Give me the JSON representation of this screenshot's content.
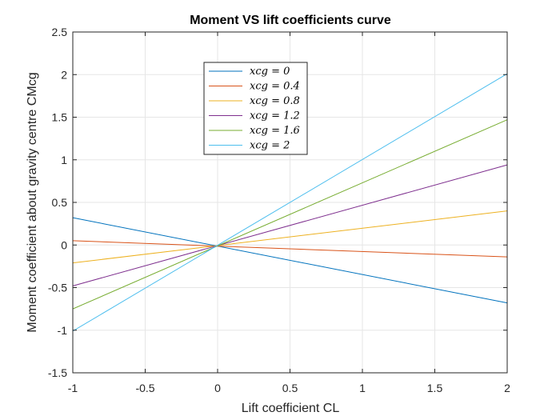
{
  "chart_data": {
    "type": "line",
    "title": "Moment VS lift coefficients curve",
    "xlabel": "Lift coefficient CL",
    "ylabel": "Moment coefficient about gravity centre CMcg",
    "xlim": [
      -1,
      2
    ],
    "ylim": [
      -1.5,
      2.5
    ],
    "xticks": [
      -1,
      -0.5,
      0,
      0.5,
      1,
      1.5,
      2
    ],
    "xtick_labels": [
      "-1",
      "-0.5",
      "0",
      "0.5",
      "1",
      "1.5",
      "2"
    ],
    "yticks": [
      -1.5,
      -1,
      -0.5,
      0,
      0.5,
      1,
      1.5,
      2,
      2.5
    ],
    "ytick_labels": [
      "-1.5",
      "-1",
      "-0.5",
      "0",
      "0.5",
      "1",
      "1.5",
      "2",
      "2.5"
    ],
    "grid": true,
    "legend_position": "top-left-center",
    "series": [
      {
        "name": "xcg = 0",
        "color": "#0072BD",
        "x": [
          -1,
          2
        ],
        "y": [
          0.32,
          -0.68
        ]
      },
      {
        "name": "xcg = 0.4",
        "color": "#D95319",
        "x": [
          -1,
          2
        ],
        "y": [
          0.05,
          -0.14
        ]
      },
      {
        "name": "xcg = 0.8",
        "color": "#EDB120",
        "x": [
          -1,
          2
        ],
        "y": [
          -0.21,
          0.4
        ]
      },
      {
        "name": "xcg = 1.2",
        "color": "#7E2F8E",
        "x": [
          -1,
          2
        ],
        "y": [
          -0.48,
          0.94
        ]
      },
      {
        "name": "xcg = 1.6",
        "color": "#77AC30",
        "x": [
          -1,
          2
        ],
        "y": [
          -0.75,
          1.47
        ]
      },
      {
        "name": "xcg = 2",
        "color": "#4DBEEE",
        "x": [
          -1,
          2
        ],
        "y": [
          -1.01,
          2.01
        ]
      }
    ]
  }
}
